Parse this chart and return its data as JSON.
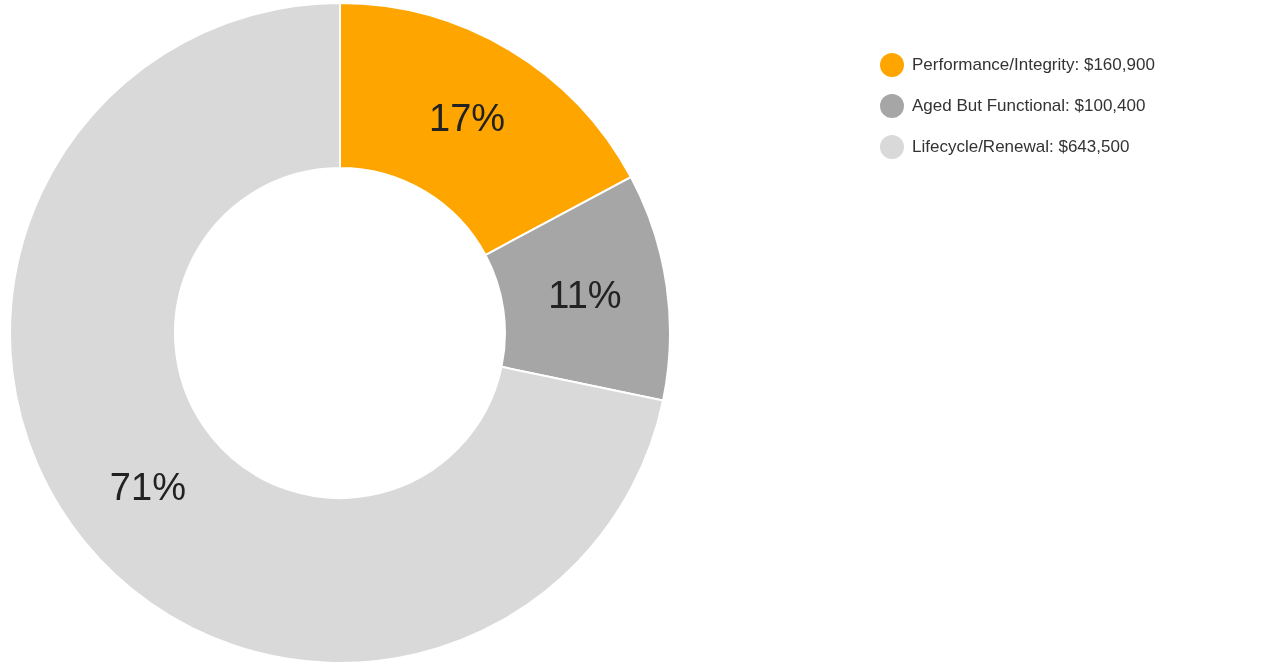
{
  "chart_data": {
    "type": "donut",
    "categories": [
      "Performance/Integrity: $160,900",
      "Aged But Functional: $100,400",
      "Lifecycle/Renewal: $643,500"
    ],
    "values": [
      17,
      11,
      71
    ],
    "colors": [
      "#ffa500",
      "#a6a6a6",
      "#d9d9d9"
    ],
    "value_labels": [
      "17%",
      "11%",
      "71%"
    ],
    "legend": "top right"
  }
}
